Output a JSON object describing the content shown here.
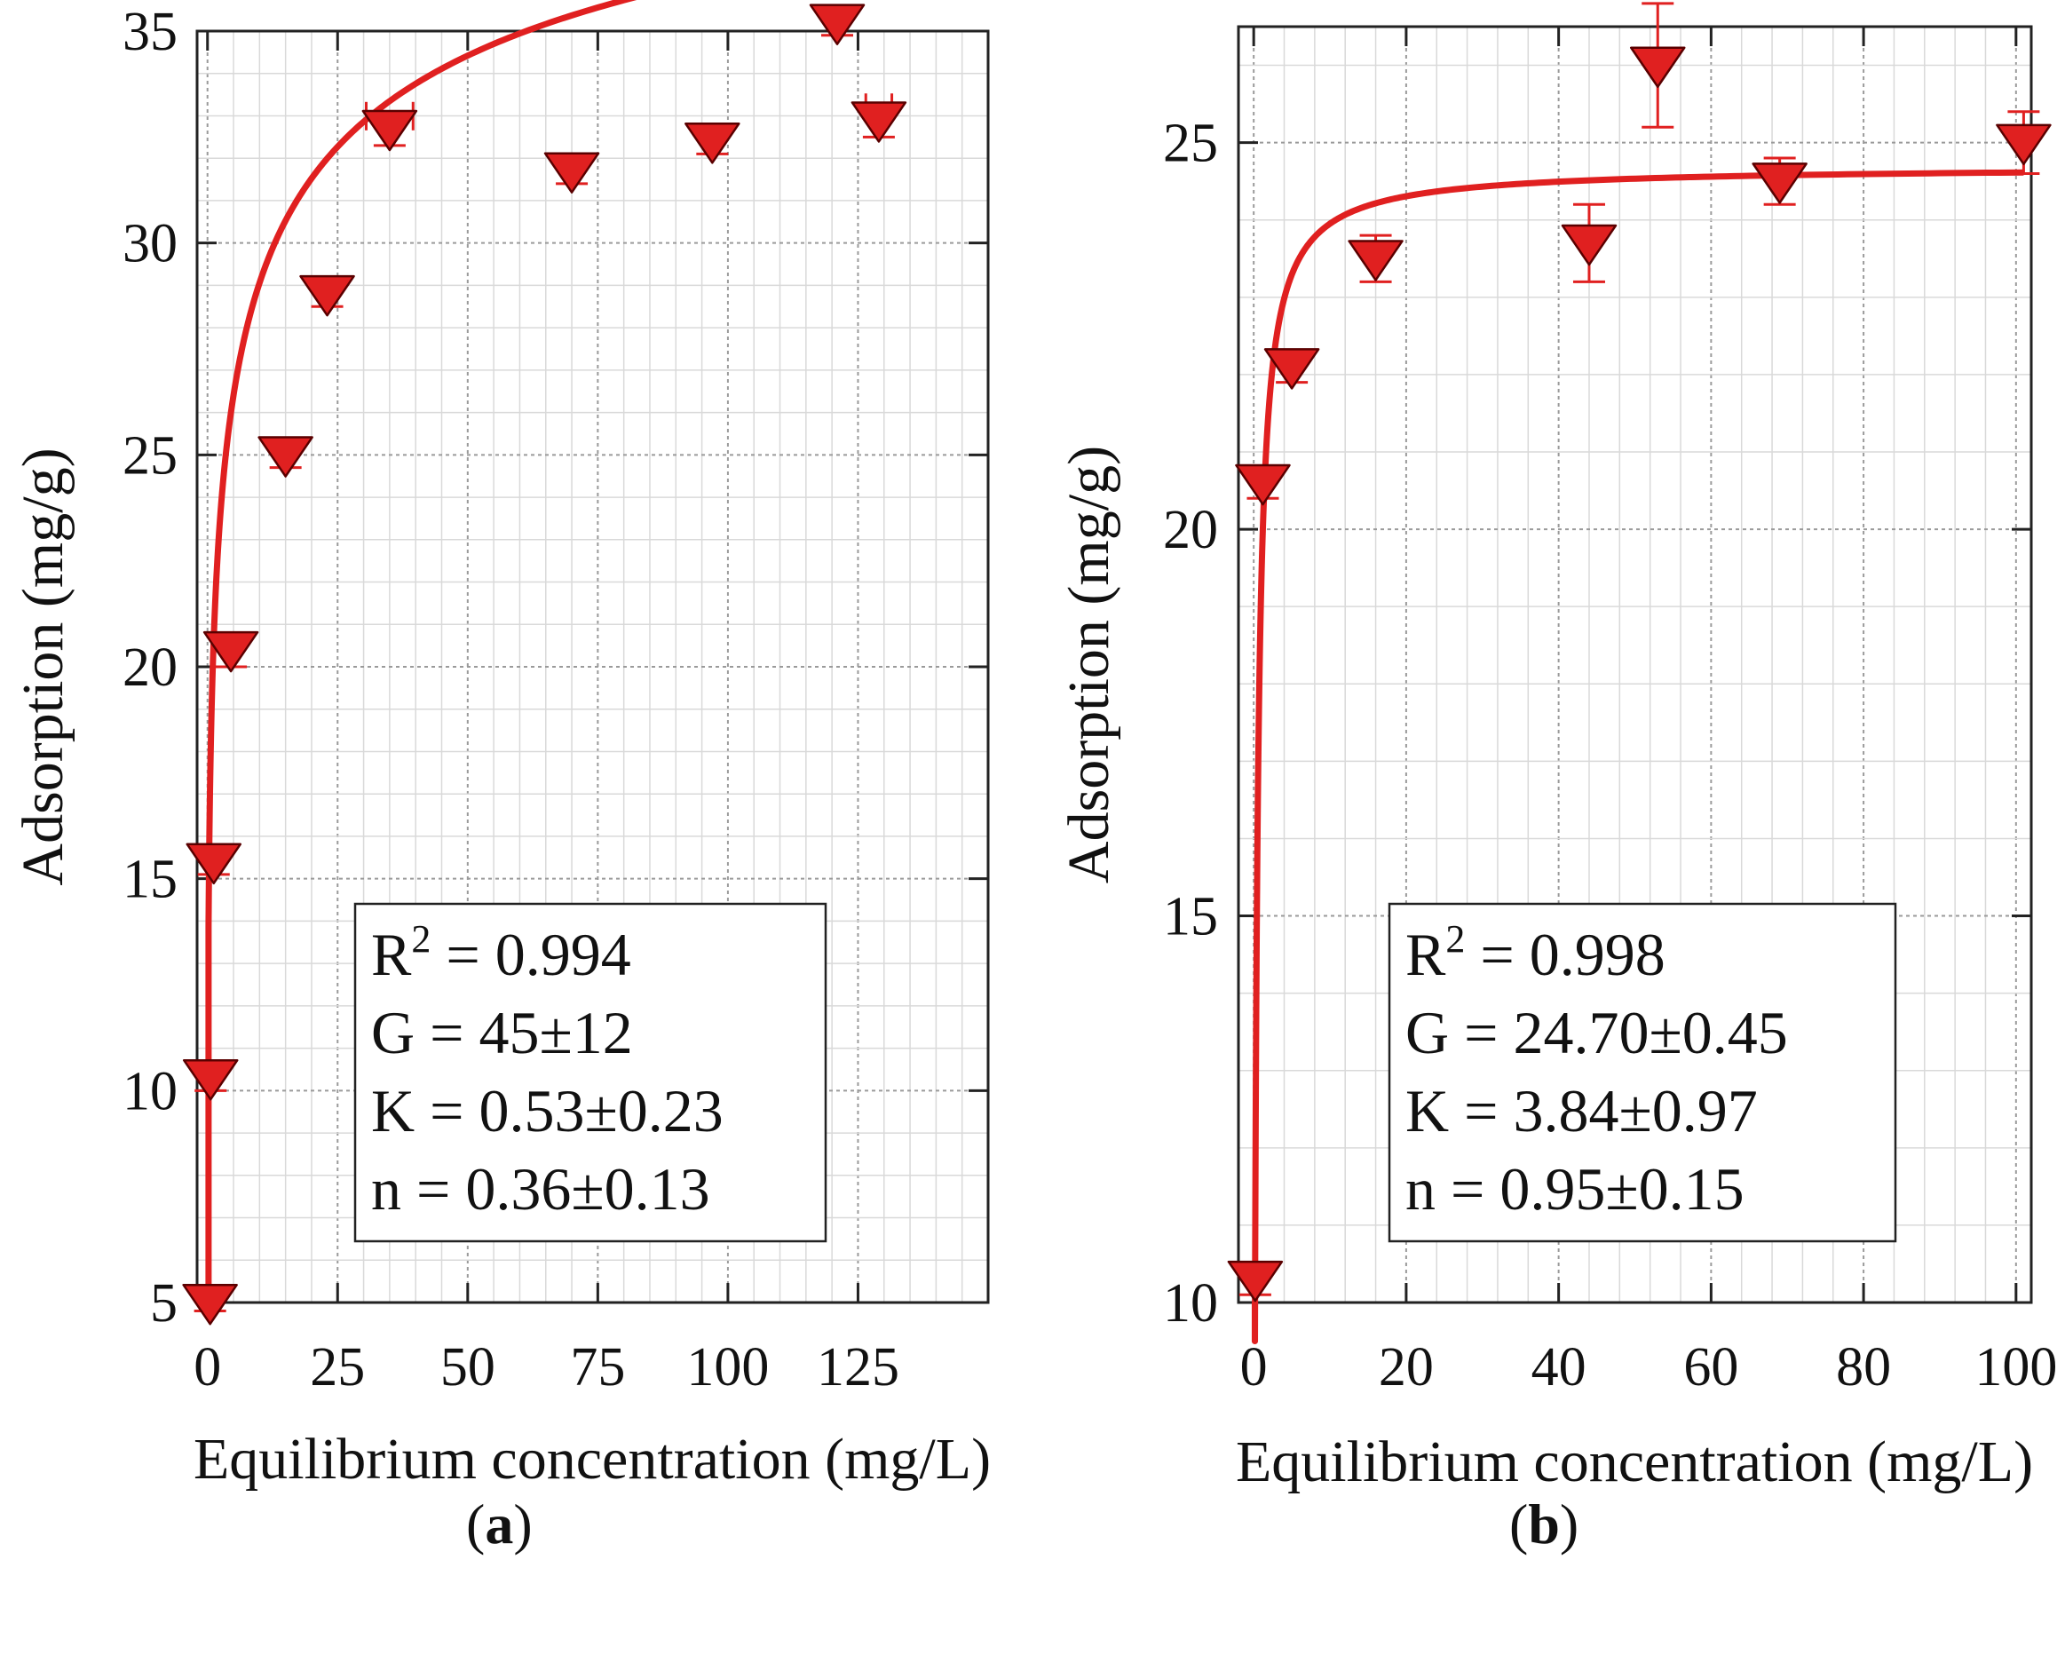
{
  "figure": {
    "panels": [
      {
        "open": "(",
        "letter": "a",
        "close": ")"
      },
      {
        "open": "(",
        "letter": "b",
        "close": ")"
      }
    ]
  },
  "chart_data": [
    {
      "type": "scatter",
      "panel": "a",
      "xlabel": "Equilibrium concentration (mg/L)",
      "ylabel": "Adsorption (mg/g)",
      "xlim": [
        -2,
        150
      ],
      "ylim": [
        5,
        35
      ],
      "xticks": [
        0,
        25,
        50,
        75,
        100,
        125
      ],
      "yticks": [
        5,
        10,
        15,
        20,
        25,
        30,
        35
      ],
      "grid": true,
      "series": [
        {
          "name": "data",
          "color": "#e02020",
          "marker": "down-triangle",
          "points": [
            {
              "x": 0.5,
              "y": 5.0,
              "yerr": 0.2
            },
            {
              "x": 0.6,
              "y": 10.3,
              "yerr": 0.3
            },
            {
              "x": 1.2,
              "y": 15.4,
              "yerr": 0.3
            },
            {
              "x": 4.5,
              "y": 20.4,
              "yerr": 0.4
            },
            {
              "x": 15,
              "y": 25.0,
              "yerr": 0.3
            },
            {
              "x": 23,
              "y": 28.8,
              "yerr": 0.3
            },
            {
              "x": 35,
              "y": 32.7,
              "xerr": 4.5,
              "yerr": 0.4
            },
            {
              "x": 70,
              "y": 31.7,
              "yerr": 0.3
            },
            {
              "x": 97,
              "y": 32.4,
              "yerr": 0.3
            },
            {
              "x": 121,
              "y": 35.2,
              "yerr": 0.3
            },
            {
              "x": 129,
              "y": 32.9,
              "xerr": 2.5,
              "yerr": 0.4
            }
          ]
        }
      ],
      "fit": {
        "model": "G*(K*x)^n/(1+(K*x)^n)",
        "G": 45,
        "K": 0.53,
        "n": 0.36,
        "x_range": [
          0.2,
          130
        ],
        "color": "#e02020"
      },
      "annotation": {
        "r2_prefix": "R",
        "r2_sup": "2",
        "r2_value": " = 0.994",
        "lines": [
          "G = 45±12",
          "K = 0.53±0.23",
          "n = 0.36±0.13"
        ]
      }
    },
    {
      "type": "scatter",
      "panel": "b",
      "xlabel": "Equilibrium concentration (mg/L)",
      "ylabel": "Adsorption (mg/g)",
      "xlim": [
        -2,
        102
      ],
      "ylim": [
        10,
        26.5
      ],
      "xticks": [
        0,
        20,
        40,
        60,
        80,
        100
      ],
      "yticks": [
        10,
        15,
        20,
        25
      ],
      "grid": true,
      "series": [
        {
          "name": "data",
          "color": "#e02020",
          "marker": "down-triangle",
          "points": [
            {
              "x": 0.2,
              "y": 10.3,
              "yerr": 0.2
            },
            {
              "x": 1.2,
              "y": 20.6,
              "yerr": 0.2
            },
            {
              "x": 5.0,
              "y": 22.1,
              "yerr": 0.2
            },
            {
              "x": 16,
              "y": 23.5,
              "yerr": 0.3
            },
            {
              "x": 44,
              "y": 23.7,
              "yerr": 0.5
            },
            {
              "x": 53,
              "y": 26.0,
              "yerr": 0.8
            },
            {
              "x": 69,
              "y": 24.5,
              "yerr": 0.3
            },
            {
              "x": 101,
              "y": 25.0,
              "yerr": 0.4
            }
          ]
        }
      ],
      "fit": {
        "model": "G*(K*x)^n/(1+(K*x)^n)",
        "G": 24.7,
        "K": 3.84,
        "n": 0.95,
        "x_range": [
          0.15,
          101
        ],
        "color": "#e02020"
      },
      "annotation": {
        "r2_prefix": "R",
        "r2_sup": "2",
        "r2_value": " = 0.998",
        "lines": [
          "G = 24.70±0.45",
          "K = 3.84±0.97",
          "n = 0.95±0.15"
        ]
      }
    }
  ]
}
